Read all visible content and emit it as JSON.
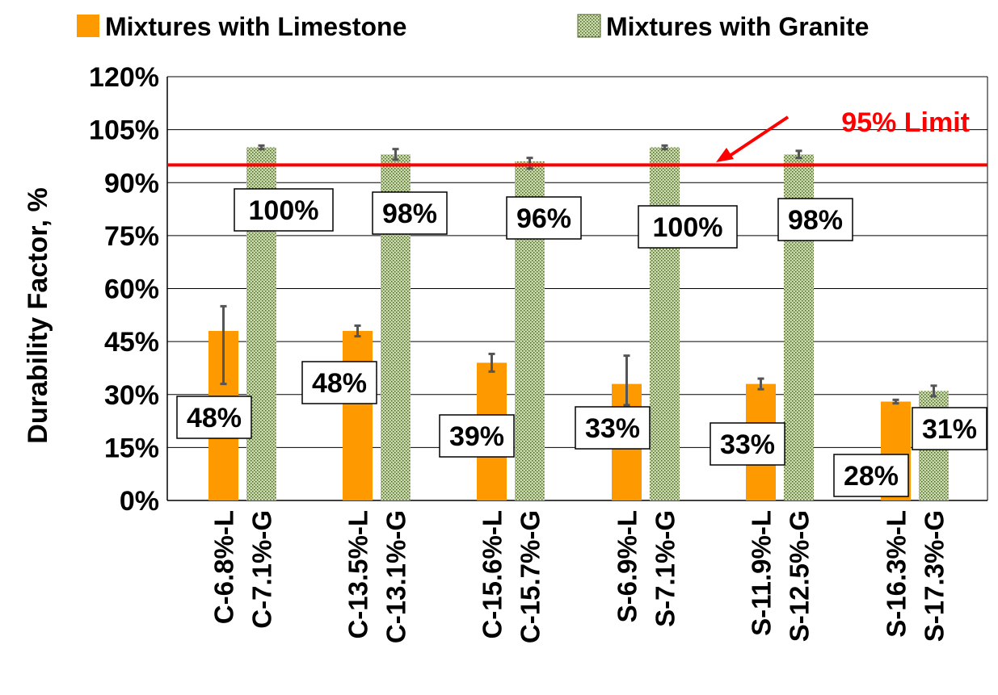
{
  "chart_data": {
    "type": "bar",
    "ylabel": "Durability  Factor, %",
    "xlabel": "",
    "ylim": [
      0,
      120
    ],
    "yticks": [
      0,
      15,
      30,
      45,
      60,
      75,
      90,
      105,
      120
    ],
    "ytick_labels": [
      "0%",
      "15%",
      "30%",
      "45%",
      "60%",
      "75%",
      "90%",
      "105%",
      "120%"
    ],
    "grid": true,
    "legend_position": "top",
    "series": [
      {
        "name": "Mixtures with Limestone",
        "color": "#ff9900",
        "pattern": "solid",
        "categories": [
          "C-6.8%-L",
          "C-13.5%-L",
          "C-15.6%-L",
          "S-6.9%-L",
          "S-11.9%-L",
          "S-16.3%-L"
        ],
        "values": [
          48,
          48,
          39,
          33,
          33,
          28
        ],
        "labels": [
          "48%",
          "48%",
          "39%",
          "33%",
          "33%",
          "28%"
        ],
        "error_low": [
          33,
          46.5,
          36.5,
          27,
          31.5,
          27.5
        ],
        "error_high": [
          55,
          49.5,
          41.5,
          41,
          34.5,
          28.5
        ]
      },
      {
        "name": "Mixtures with Granite",
        "color": "#4f6228",
        "pattern": "dotted-green",
        "categories": [
          "C-7.1%-G",
          "C-13.1%-G",
          "C-15.7%-G",
          "S-7.1%-G",
          "S-12.5%-G",
          "S-17.3%-G"
        ],
        "values": [
          100,
          98,
          96,
          100,
          98,
          31
        ],
        "labels": [
          "100%",
          "98%",
          "96%",
          "100%",
          "98%",
          "31%"
        ],
        "error_low": [
          99.5,
          96.5,
          94,
          99.5,
          97,
          29.5
        ],
        "error_high": [
          100.5,
          99.5,
          97,
          100.5,
          99,
          32.5
        ]
      }
    ],
    "reference_line": {
      "value": 95,
      "label": "95% Limit",
      "color": "#ff0000"
    }
  }
}
